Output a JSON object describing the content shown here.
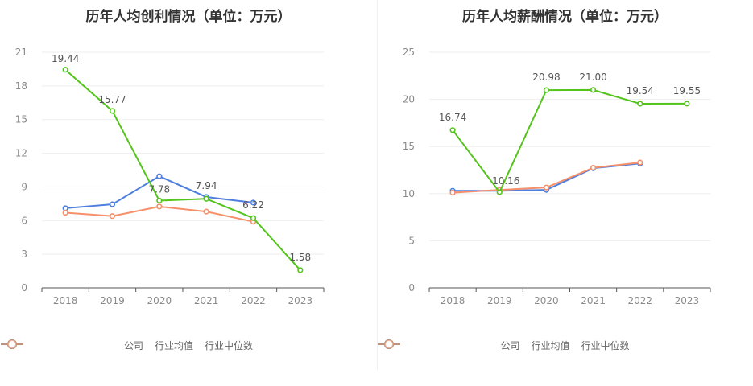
{
  "chart_data": [
    {
      "type": "line",
      "title": "历年人均创利情况（单位：万元）",
      "categories": [
        "2018",
        "2019",
        "2020",
        "2021",
        "2022",
        "2023"
      ],
      "ylim": [
        0,
        21
      ],
      "yticks": [
        "0",
        "3",
        "6",
        "9",
        "12",
        "15",
        "18",
        "21"
      ],
      "series": [
        {
          "name": "公司",
          "color": "#52c41a",
          "values": [
            19.44,
            15.77,
            7.78,
            7.94,
            6.22,
            1.58
          ],
          "labels": [
            "19.44",
            "15.77",
            "7.78",
            "7.94",
            "6.22",
            "1.58"
          ]
        },
        {
          "name": "行业均值",
          "color": "#4e7fdf",
          "values": [
            7.1,
            7.45,
            9.95,
            8.1,
            7.6,
            null
          ]
        },
        {
          "name": "行业中位数",
          "color": "#f5906b",
          "values": [
            6.7,
            6.4,
            7.25,
            6.8,
            5.9,
            null
          ]
        }
      ],
      "grid": true,
      "legend": "bottom"
    },
    {
      "type": "line",
      "title": "历年人均薪酬情况（单位：万元）",
      "categories": [
        "2018",
        "2019",
        "2020",
        "2021",
        "2022",
        "2023"
      ],
      "ylim": [
        0,
        25
      ],
      "yticks": [
        "0",
        "5",
        "10",
        "15",
        "20",
        "25"
      ],
      "series": [
        {
          "name": "公司",
          "color": "#52c41a",
          "values": [
            16.74,
            10.16,
            20.98,
            21.0,
            19.54,
            19.55
          ],
          "labels": [
            "16.74",
            "10.16",
            "20.98",
            "21.00",
            "19.54",
            "19.55"
          ]
        },
        {
          "name": "行业均值",
          "color": "#4e7fdf",
          "values": [
            10.3,
            10.3,
            10.4,
            12.7,
            13.2,
            null
          ]
        },
        {
          "name": "行业中位数",
          "color": "#f5906b",
          "values": [
            10.1,
            10.4,
            10.65,
            12.75,
            13.3,
            null
          ]
        }
      ],
      "grid": true,
      "legend": "bottom"
    }
  ]
}
